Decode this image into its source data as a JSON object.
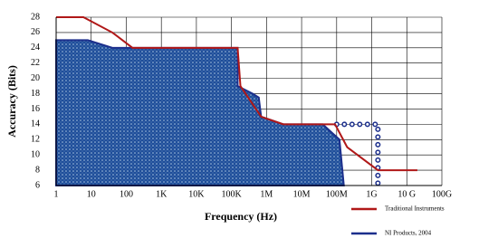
{
  "chart_data": {
    "type": "area",
    "x_label": "Frequency (Hz)",
    "y_label": "Accuracy (Bits)",
    "xscale": "log",
    "xlim": [
      1,
      100000000000
    ],
    "ylim": [
      6,
      28
    ],
    "xticks": [
      1,
      10,
      100,
      {
        "value": 1000,
        "label": "1K"
      },
      {
        "value": 10000,
        "label": "10K"
      },
      {
        "value": 100000,
        "label": "100K"
      },
      {
        "value": 1000000,
        "label": "1M"
      },
      {
        "value": 10000000,
        "label": "10M"
      },
      {
        "value": 100000000,
        "label": "100M"
      },
      {
        "value": 1000000000,
        "label": "1G"
      },
      {
        "value": 10000000000,
        "label": "10 G"
      },
      {
        "value": 100000000000,
        "label": "100G"
      }
    ],
    "yticks": [
      6,
      8,
      10,
      12,
      14,
      16,
      18,
      20,
      22,
      24,
      26,
      28
    ],
    "grid": true,
    "legend": "bottom-right",
    "series": [
      {
        "name": "Traditional Instruments",
        "color": "#b01818",
        "style": "line",
        "x": [
          1,
          6,
          40,
          150,
          150000,
          180000,
          700000,
          3000000,
          90000000,
          200000000,
          1500000000,
          20000000000
        ],
        "values": [
          28,
          28,
          26,
          24,
          24,
          19,
          15,
          14,
          14,
          11,
          8,
          8
        ]
      },
      {
        "name": "NI Products, 2004",
        "color": "#1c2f8c",
        "style": "area",
        "x": [
          1,
          8,
          40,
          150000,
          150000,
          400000,
          600000,
          700000,
          3000000,
          40000000,
          120000000,
          160000000
        ],
        "values": [
          25,
          25,
          24,
          24,
          19,
          18,
          17.5,
          15,
          14,
          14,
          12,
          6
        ]
      }
    ],
    "extension": {
      "color": "#1c2f8c",
      "style": "dotted",
      "x": [
        100000000,
        1500000000,
        1500000000
      ],
      "values": [
        14,
        14,
        6
      ]
    }
  }
}
